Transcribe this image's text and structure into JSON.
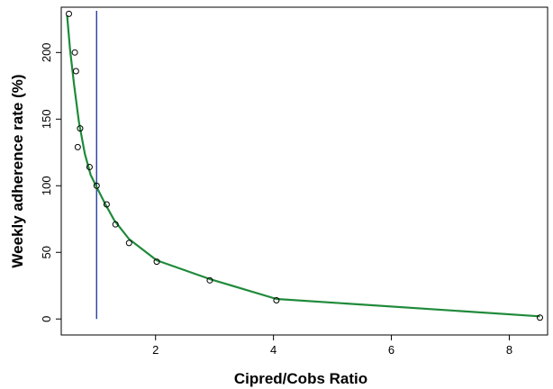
{
  "chart_data": {
    "type": "scatter",
    "xlabel": "Cipred/Cobs Ratio",
    "ylabel": "Weekly adherence rate (%)",
    "xlim": [
      0.4,
      8.65
    ],
    "ylim": [
      -12,
      234
    ],
    "xticks": [
      2,
      4,
      6,
      8
    ],
    "yticks": [
      0,
      50,
      100,
      150,
      200
    ],
    "grid": false,
    "vline_x": 1,
    "colors": {
      "points": "#000000",
      "curve": "#1f8a3a",
      "vline": "#2b3f9e",
      "axis": "#000000"
    },
    "series": [
      {
        "type": "scatter",
        "x": [
          0.53,
          0.63,
          0.65,
          0.68,
          0.72,
          0.88,
          1.0,
          1.17,
          1.32,
          1.55,
          2.02,
          2.92,
          4.05,
          8.52
        ],
        "y": [
          229,
          200,
          186,
          129,
          143,
          114,
          100,
          86,
          71,
          57,
          43,
          29,
          14,
          1
        ]
      },
      {
        "type": "line",
        "x": [
          0.5,
          0.55,
          0.62,
          0.7,
          0.8,
          0.9,
          1.0,
          1.15,
          1.3,
          1.55,
          2.02,
          2.92,
          4.05,
          8.52
        ],
        "y": [
          228,
          202,
          175,
          148,
          124,
          108,
          99,
          86,
          74,
          60,
          44,
          30,
          15,
          2
        ]
      }
    ]
  }
}
